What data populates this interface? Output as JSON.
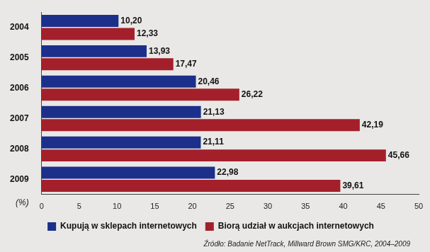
{
  "chart_data": {
    "type": "bar",
    "orientation": "horizontal",
    "categories": [
      "2004",
      "2005",
      "2006",
      "2007",
      "2008",
      "2009"
    ],
    "series": [
      {
        "name": "Kupują w sklepach internetowych",
        "color": "#1c2f8a",
        "values": [
          10.2,
          13.93,
          20.46,
          21.13,
          21.11,
          22.98
        ],
        "value_labels": [
          "10,20",
          "13,93",
          "20,46",
          "21,13",
          "21,11",
          "22,98"
        ]
      },
      {
        "name": "Biorą udział w aukcjach internetowych",
        "color": "#a3202b",
        "values": [
          12.33,
          17.47,
          26.22,
          42.19,
          45.66,
          39.61
        ],
        "value_labels": [
          "12,33",
          "17,47",
          "26,22",
          "42,19",
          "45,66",
          "39,61"
        ]
      }
    ],
    "xlabel": "(%)",
    "xlim": [
      0,
      50
    ],
    "xticks": [
      0,
      5,
      10,
      15,
      20,
      25,
      30,
      35,
      40,
      45,
      50
    ],
    "grid": false,
    "legend": "bottom",
    "data_labels": true,
    "annotation": "Źródło: Badanie NetTrack, Millward Brown SMG/KRC, 2004–2009"
  }
}
